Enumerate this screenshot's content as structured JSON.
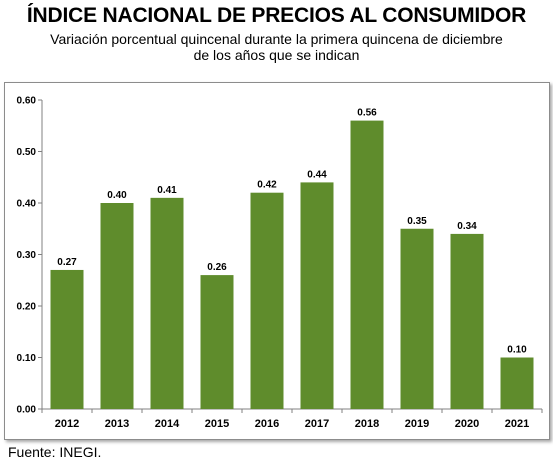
{
  "header": {
    "title": "ÍNDICE NACIONAL DE PRECIOS AL CONSUMIDOR",
    "subtitle_line1": "Variación porcentual quincenal durante la primera quincena de diciembre",
    "subtitle_line2": "de los años que se indican"
  },
  "footer": {
    "source": "Fuente:  INEGI."
  },
  "colors": {
    "bar": "#5f8c2c",
    "axis": "#808080",
    "background": "#ffffff"
  },
  "chart_data": {
    "type": "bar",
    "title": "ÍNDICE NACIONAL DE PRECIOS AL CONSUMIDOR",
    "subtitle": "Variación porcentual quincenal durante la primera quincena de diciembre de los años que se indican",
    "categories": [
      "2012",
      "2013",
      "2014",
      "2015",
      "2016",
      "2017",
      "2018",
      "2019",
      "2020",
      "2021"
    ],
    "values": [
      0.27,
      0.4,
      0.41,
      0.26,
      0.42,
      0.44,
      0.56,
      0.35,
      0.34,
      0.1
    ],
    "value_labels": [
      "0.27",
      "0.40",
      "0.41",
      "0.26",
      "0.42",
      "0.44",
      "0.56",
      "0.35",
      "0.34",
      "0.10"
    ],
    "y_ticks": [
      0.0,
      0.1,
      0.2,
      0.3,
      0.4,
      0.5,
      0.6
    ],
    "y_tick_labels": [
      "0.00",
      "0.10",
      "0.20",
      "0.30",
      "0.40",
      "0.50",
      "0.60"
    ],
    "ylim": [
      0,
      0.6
    ],
    "xlabel": "",
    "ylabel": "",
    "grid": false,
    "legend": "none"
  }
}
